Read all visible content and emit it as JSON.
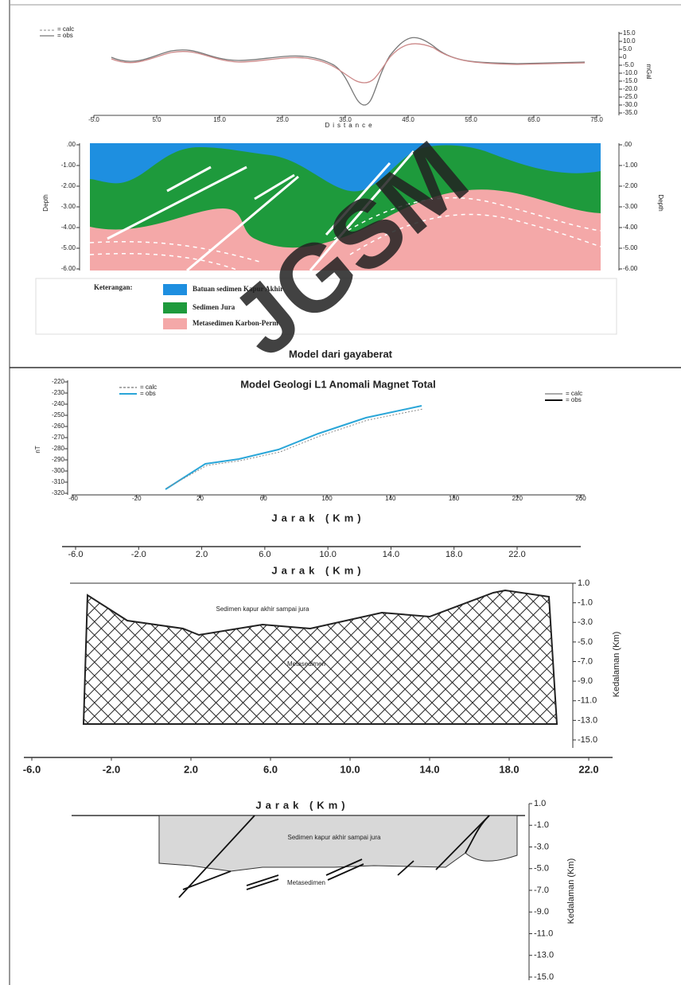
{
  "gravity": {
    "legend": [
      "= calc",
      "= obs"
    ],
    "xticks": [
      "-5.0",
      "5.0",
      "15.0",
      "25.0",
      "35.0",
      "45.0",
      "55.0",
      "65.0",
      "75.0"
    ],
    "xlabel": "Distance",
    "yticks": [
      "15.0",
      "10.0",
      "5.0",
      "0",
      "-5.0",
      "-10.0",
      "-15.0",
      "-20.0",
      "-25.0",
      "-30.0",
      "-35.0"
    ],
    "ylabel": "mGal",
    "depth_ticks": [
      ".00",
      "-1.00",
      "-2.00",
      "-3.00",
      "-4.00",
      "-5.00",
      "-6.00"
    ],
    "depth_label": "Depth",
    "legend_title": "Keterangan:",
    "units": [
      "Batuan sedimen Kapur Akhir",
      "Sedimen Jura",
      "Metasedimen Karbon-Perm"
    ],
    "caption": "Model dari gayaberat"
  },
  "magnetic": {
    "title": "Model Geologi L1 Anomali Magnet Total",
    "legend": [
      "= calc",
      "= obs"
    ],
    "xticks": [
      "-60",
      "-20",
      "20",
      "60",
      "100",
      "140",
      "180",
      "220",
      "260"
    ],
    "xlabel": "Jarak (Km)",
    "yticks": [
      "-220",
      "-230",
      "-240",
      "-250",
      "-260",
      "-270",
      "-280",
      "-290",
      "-300",
      "-310",
      "-320"
    ],
    "ylabel": "nT"
  },
  "section1": {
    "xticks": [
      "-6.0",
      "-2.0",
      "2.0",
      "6.0",
      "10.0",
      "14.0",
      "18.0",
      "22.0"
    ],
    "xlabel": "Jarak (Km)",
    "yticks": [
      "1.0",
      "-1.0",
      "-3.0",
      "-5.0",
      "-7.0",
      "-9.0",
      "-11.0",
      "-13.0",
      "-15.0"
    ],
    "ylabel": "Kedalaman (Km)",
    "labels": [
      "Sedimen kapur akhir sampai jura",
      "Metasedimen"
    ]
  },
  "section2": {
    "xticks": [
      "-6.0",
      "-2.0",
      "2.0",
      "6.0",
      "10.0",
      "14.0",
      "18.0",
      "22.0"
    ],
    "xlabel": "Jarak (Km)",
    "yticks": [
      "1.0",
      "-1.0",
      "-3.0",
      "-5.0",
      "-7.0",
      "-9.0",
      "-11.0",
      "-13.0",
      "-15.0"
    ],
    "ylabel": "Kedalaman (Km)",
    "labels": [
      "Sedimen kapur akhir sampai jura",
      "Metasedimen"
    ]
  },
  "watermark": "JGSM"
}
